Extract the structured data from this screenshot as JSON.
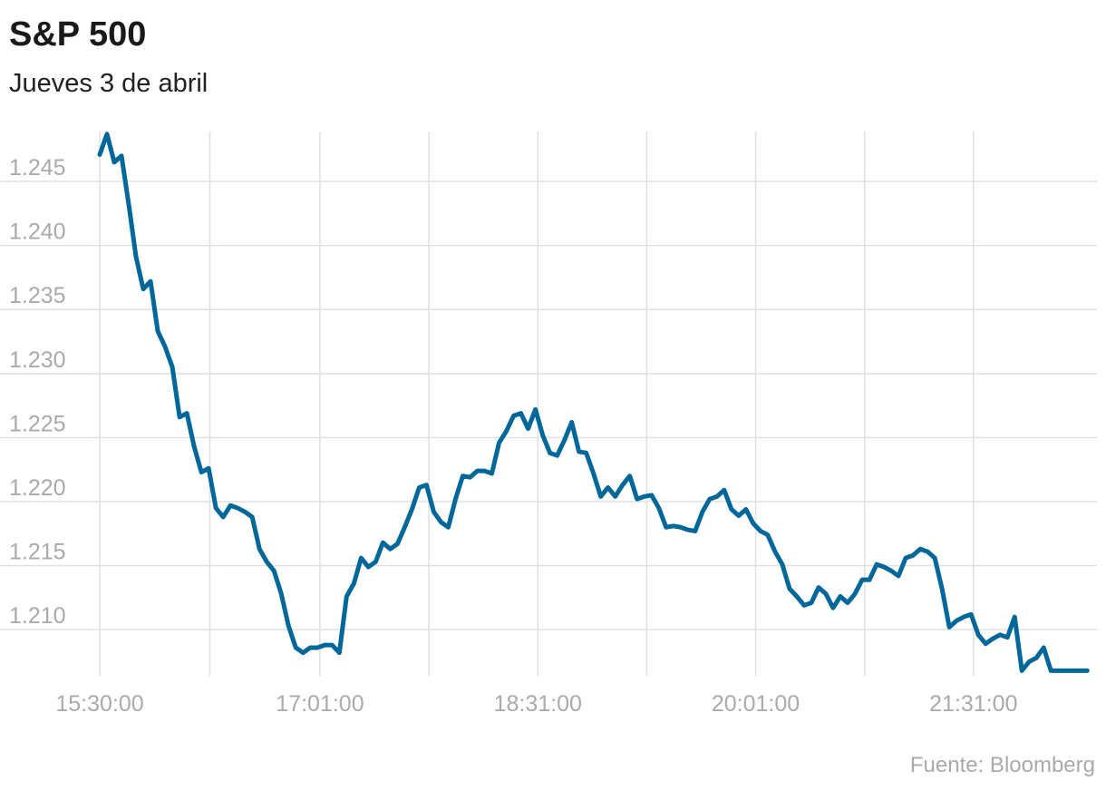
{
  "chart_data": {
    "type": "line",
    "title": "S&P 500",
    "subtitle": "Jueves 3 de abril",
    "source": "Fuente: Bloomberg",
    "color": "#00679a",
    "grid": true,
    "xlim": [
      "14:48:48",
      "22:22:00"
    ],
    "xticks": [
      "15:30:00",
      {
        "value": "16:15:30",
        "label": null
      },
      "17:01:00",
      {
        "value": "17:46:00",
        "label": null
      },
      "18:31:00",
      {
        "value": "19:16:00",
        "label": null
      },
      "20:01:00",
      {
        "value": "20:46:00",
        "label": null
      },
      "21:31:00"
    ],
    "ylim": [
      1206.4,
      1248.9
    ],
    "yticks": [
      {
        "value": 1210,
        "label": "1.210"
      },
      {
        "value": 1215,
        "label": "1.215"
      },
      {
        "value": 1220,
        "label": "1.220"
      },
      {
        "value": 1225,
        "label": "1.225"
      },
      {
        "value": 1230,
        "label": "1.230"
      },
      {
        "value": 1235,
        "label": "1.235"
      },
      {
        "value": 1240,
        "label": "1.240"
      },
      {
        "value": 1245,
        "label": "1.245"
      }
    ],
    "x": [
      "15:30:00",
      "15:33:00",
      "15:36:00",
      "15:39:00",
      "15:42:00",
      "15:45:00",
      "15:48:00",
      "15:51:00",
      "15:54:00",
      "15:57:00",
      "16:00:00",
      "16:03:00",
      "16:06:00",
      "16:09:00",
      "16:12:00",
      "16:15:00",
      "16:18:00",
      "16:21:00",
      "16:24:00",
      "16:27:00",
      "16:30:00",
      "16:33:00",
      "16:36:00",
      "16:39:00",
      "16:42:00",
      "16:45:00",
      "16:48:00",
      "16:51:00",
      "16:54:00",
      "16:57:00",
      "17:00:00",
      "17:03:00",
      "17:06:00",
      "17:09:00",
      "17:12:00",
      "17:15:00",
      "17:18:00",
      "17:21:00",
      "17:24:00",
      "17:27:00",
      "17:30:00",
      "17:33:00",
      "17:36:00",
      "17:39:00",
      "17:42:00",
      "17:45:00",
      "17:48:00",
      "17:51:00",
      "17:54:00",
      "17:57:00",
      "18:00:00",
      "18:03:00",
      "18:06:00",
      "18:09:00",
      "18:12:00",
      "18:15:00",
      "18:18:00",
      "18:21:00",
      "18:24:00",
      "18:27:00",
      "18:30:00",
      "18:33:00",
      "18:36:00",
      "18:39:00",
      "18:42:00",
      "18:45:00",
      "18:48:00",
      "18:51:00",
      "18:54:00",
      "18:57:00",
      "19:00:00",
      "19:03:00",
      "19:06:00",
      "19:09:00",
      "19:12:00",
      "19:15:00",
      "19:18:00",
      "19:21:00",
      "19:24:00",
      "19:27:00",
      "19:30:00",
      "19:33:00",
      "19:36:00",
      "19:39:00",
      "19:42:00",
      "19:45:00",
      "19:48:00",
      "19:51:00",
      "19:54:00",
      "19:57:00",
      "20:00:00",
      "20:03:00",
      "20:06:00",
      "20:09:00",
      "20:12:00",
      "20:15:00",
      "20:18:00",
      "20:21:00",
      "20:24:00",
      "20:27:00",
      "20:30:00",
      "20:33:00",
      "20:36:00",
      "20:39:00",
      "20:42:00",
      "20:45:00",
      "20:48:00",
      "20:51:00",
      "20:54:00",
      "20:57:00",
      "21:00:00",
      "21:03:00",
      "21:06:00",
      "21:09:00",
      "21:12:00",
      "21:15:00",
      "21:18:00",
      "21:21:00",
      "21:24:00",
      "21:27:00",
      "21:30:00",
      "21:33:00",
      "21:36:00",
      "21:39:00",
      "21:42:00",
      "21:45:00",
      "21:48:00",
      "21:51:00",
      "21:54:00",
      "21:57:00",
      "22:00:00",
      "22:03:00",
      "22:06:00",
      "22:09:00",
      "22:12:00",
      "22:15:00",
      "22:18:00"
    ],
    "values": [
      1247.1,
      1248.7,
      1246.5,
      1247.0,
      1243.2,
      1239.1,
      1236.6,
      1237.2,
      1233.3,
      1232.1,
      1230.5,
      1226.6,
      1226.9,
      1224.3,
      1222.3,
      1222.6,
      1219.5,
      1218.8,
      1219.7,
      1219.5,
      1219.2,
      1218.8,
      1216.3,
      1215.3,
      1214.6,
      1212.8,
      1210.3,
      1208.6,
      1208.2,
      1208.6,
      1208.6,
      1208.8,
      1208.8,
      1208.2,
      1212.6,
      1213.6,
      1215.6,
      1214.9,
      1215.3,
      1216.8,
      1216.3,
      1216.7,
      1218.0,
      1219.4,
      1221.1,
      1221.3,
      1219.2,
      1218.4,
      1218.0,
      1220.2,
      1222.0,
      1221.9,
      1222.4,
      1222.4,
      1222.2,
      1224.6,
      1225.5,
      1226.7,
      1226.9,
      1225.7,
      1227.2,
      1225.2,
      1223.8,
      1223.6,
      1224.8,
      1226.2,
      1223.9,
      1223.8,
      1222.2,
      1220.4,
      1221.1,
      1220.4,
      1221.3,
      1222.0,
      1220.2,
      1220.4,
      1220.5,
      1219.5,
      1218.0,
      1218.1,
      1218.0,
      1217.8,
      1217.7,
      1219.2,
      1220.2,
      1220.4,
      1220.9,
      1219.4,
      1218.9,
      1219.4,
      1218.3,
      1217.7,
      1217.4,
      1216.1,
      1215.1,
      1213.2,
      1212.6,
      1211.9,
      1212.1,
      1213.3,
      1212.8,
      1211.7,
      1212.6,
      1212.1,
      1212.8,
      1213.9,
      1213.9,
      1215.1,
      1214.9,
      1214.6,
      1214.2,
      1215.6,
      1215.8,
      1216.3,
      1216.1,
      1215.6,
      1213.2,
      1210.2,
      1210.7,
      1211.0,
      1211.2,
      1209.6,
      1208.9,
      1209.3,
      1209.6,
      1209.4,
      1211.0,
      1206.8,
      1207.5,
      1207.8,
      1208.6,
      1206.8,
      1206.8,
      1206.8,
      1206.8,
      1206.8,
      1206.8
    ]
  }
}
